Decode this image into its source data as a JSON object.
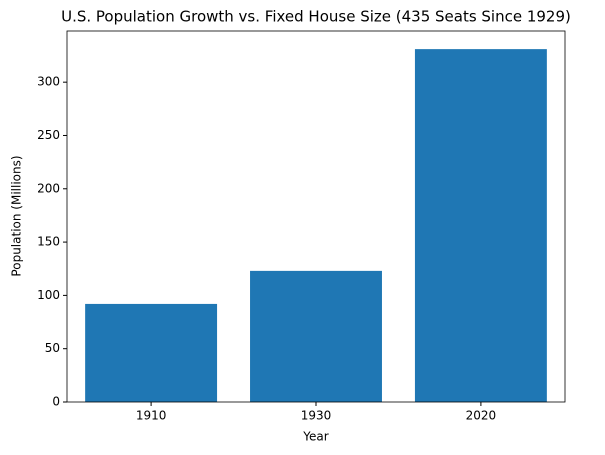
{
  "chart_data": {
    "type": "bar",
    "title": "U.S. Population Growth vs. Fixed House Size (435 Seats Since 1929)",
    "x_label": "Year",
    "y_label": "Population (Millions)",
    "categories": [
      "1910",
      "1930",
      "2020"
    ],
    "values": [
      92,
      123,
      331
    ],
    "color": "#1f77b4",
    "ylim": [
      0,
      348
    ],
    "yticks": [
      0,
      50,
      100,
      150,
      200,
      250,
      300
    ]
  }
}
